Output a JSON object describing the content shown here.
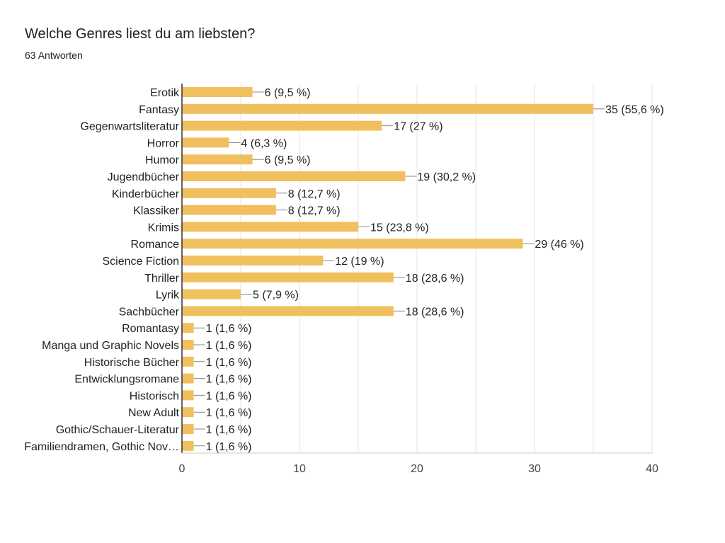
{
  "header": {
    "title": "Welche Genres liest du am liebsten?",
    "responses": "63 Antworten"
  },
  "colors": {
    "bar": "#f1c05e",
    "grid": "#e6e6e6",
    "axis": "#333333",
    "label": "#222222",
    "tick": "#444444"
  },
  "chart_data": {
    "type": "bar",
    "orientation": "horizontal",
    "title": "Welche Genres liest du am liebsten?",
    "subtitle": "63 Antworten",
    "xlabel": "",
    "ylabel": "",
    "xlim": [
      0,
      40
    ],
    "xticks": [
      0,
      10,
      20,
      30,
      40
    ],
    "grid": true,
    "categories": [
      "Erotik",
      "Fantasy",
      "Gegenwartsliteratur",
      "Horror",
      "Humor",
      "Jugendbücher",
      "Kinderbücher",
      "Klassiker",
      "Krimis",
      "Romance",
      "Science Fiction",
      "Thriller",
      "Lyrik",
      "Sachbücher",
      "Romantasy",
      "Manga und Graphic Novels",
      "Historische Bücher",
      "Entwicklungsromane",
      "Historisch",
      "New Adult",
      "Gothic/Schauer-Literatur",
      "Familiendramen, Gothic Nov…"
    ],
    "values": [
      6,
      35,
      17,
      4,
      6,
      19,
      8,
      8,
      15,
      29,
      12,
      18,
      5,
      18,
      1,
      1,
      1,
      1,
      1,
      1,
      1,
      1
    ],
    "data_labels": [
      "6 (9,5 %)",
      "35 (55,6 %)",
      "17 (27 %)",
      "4 (6,3 %)",
      "6 (9,5 %)",
      "19 (30,2 %)",
      "8 (12,7 %)",
      "8 (12,7 %)",
      "15 (23,8 %)",
      "29 (46 %)",
      "12 (19 %)",
      "18 (28,6 %)",
      "5 (7,9 %)",
      "18 (28,6 %)",
      "1 (1,6 %)",
      "1 (1,6 %)",
      "1 (1,6 %)",
      "1 (1,6 %)",
      "1 (1,6 %)",
      "1 (1,6 %)",
      "1 (1,6 %)",
      "1 (1,6 %)"
    ]
  }
}
